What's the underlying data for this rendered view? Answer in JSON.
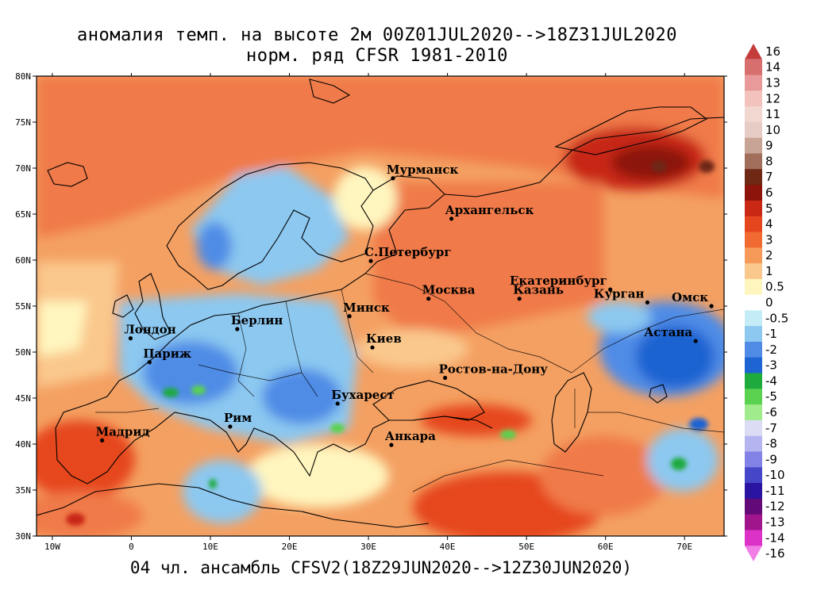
{
  "title_line1": "аномалия темп. на высоте 2м 00Z01JUL2020-->18Z31JUL2020",
  "title_line2": "норм. ряд CFSR 1981-2010",
  "footer": "04 чл. ансамбль CFSV2(18Z29JUN2020-->12Z30JUN2020)",
  "map_extent": {
    "lon": [
      -12,
      75
    ],
    "lat": [
      30,
      80
    ]
  },
  "lon_ticks": [
    {
      "lon": -10,
      "label": "10W"
    },
    {
      "lon": 0,
      "label": "0"
    },
    {
      "lon": 10,
      "label": "10E"
    },
    {
      "lon": 20,
      "label": "20E"
    },
    {
      "lon": 30,
      "label": "30E"
    },
    {
      "lon": 40,
      "label": "40E"
    },
    {
      "lon": 50,
      "label": "50E"
    },
    {
      "lon": 60,
      "label": "60E"
    },
    {
      "lon": 70,
      "label": "70E"
    }
  ],
  "lat_ticks": [
    {
      "lat": 30,
      "label": "30N"
    },
    {
      "lat": 35,
      "label": "35N"
    },
    {
      "lat": 40,
      "label": "40N"
    },
    {
      "lat": 45,
      "label": "45N"
    },
    {
      "lat": 50,
      "label": "50N"
    },
    {
      "lat": 55,
      "label": "55N"
    },
    {
      "lat": 60,
      "label": "60N"
    },
    {
      "lat": 65,
      "label": "65N"
    },
    {
      "lat": 70,
      "label": "70N"
    },
    {
      "lat": 75,
      "label": "75N"
    },
    {
      "lat": 80,
      "label": "80N"
    }
  ],
  "cities": [
    {
      "name": "Мурманск",
      "lon": 33.1,
      "lat": 68.9
    },
    {
      "name": "Архангельск",
      "lon": 40.5,
      "lat": 64.5
    },
    {
      "name": "С.Петербург",
      "lon": 30.3,
      "lat": 59.9
    },
    {
      "name": "Москва",
      "lon": 37.6,
      "lat": 55.8
    },
    {
      "name": "Казань",
      "lon": 49.1,
      "lat": 55.8
    },
    {
      "name": "Екатеринбург",
      "lon": 60.6,
      "lat": 56.8
    },
    {
      "name": "Курган",
      "lon": 65.3,
      "lat": 55.4
    },
    {
      "name": "Омск",
      "lon": 73.4,
      "lat": 55.0
    },
    {
      "name": "Астана",
      "lon": 71.4,
      "lat": 51.2
    },
    {
      "name": "Минск",
      "lon": 27.6,
      "lat": 53.9
    },
    {
      "name": "Берлин",
      "lon": 13.4,
      "lat": 52.5
    },
    {
      "name": "Лондон",
      "lon": -0.1,
      "lat": 51.5
    },
    {
      "name": "Париж",
      "lon": 2.3,
      "lat": 48.9
    },
    {
      "name": "Киев",
      "lon": 30.5,
      "lat": 50.5
    },
    {
      "name": "Ростов-на-Дону",
      "lon": 39.7,
      "lat": 47.2
    },
    {
      "name": "Бухарест",
      "lon": 26.1,
      "lat": 44.4
    },
    {
      "name": "Рим",
      "lon": 12.5,
      "lat": 41.9
    },
    {
      "name": "Мадрид",
      "lon": -3.7,
      "lat": 40.4
    },
    {
      "name": "Анкара",
      "lon": 32.9,
      "lat": 39.9
    }
  ],
  "legend": {
    "labels": [
      "16",
      "14",
      "13",
      "12",
      "11",
      "10",
      "9",
      "8",
      "7",
      "6",
      "5",
      "4",
      "3",
      "2",
      "1",
      "0.5",
      "0",
      "-0.5",
      "-1",
      "-2",
      "-3",
      "-4",
      "-5",
      "-6",
      "-7",
      "-8",
      "-9",
      "-10",
      "-11",
      "-12",
      "-13",
      "-14",
      "-16"
    ],
    "colors": [
      "#c43c3c",
      "#d86f6f",
      "#e89a9a",
      "#f4c2bc",
      "#f2d6d0",
      "#e6ccc4",
      "#c8a496",
      "#a06e5a",
      "#6e2814",
      "#8c140a",
      "#c82814",
      "#e6461e",
      "#f06a32",
      "#f59a58",
      "#fac88c",
      "#fff5be",
      "#ffffff",
      "#c4ecf7",
      "#8cc8f0",
      "#508ce6",
      "#1e64d2",
      "#1eaa3c",
      "#5ad250",
      "#a0eb8c",
      "#dcdcf5",
      "#b4b4f0",
      "#8282e6",
      "#4646c8",
      "#2814a0",
      "#640a78",
      "#a0148c",
      "#dc32c8",
      "#f07ee6"
    ],
    "below": {
      "label": "-16",
      "color": "#f07ee6"
    },
    "above": {
      "label": "16",
      "color": "#c43c3c"
    }
  },
  "colors": {
    "ocean_warm": "#f07a4a",
    "warm": "#f4a062",
    "cold": "#508ce6",
    "hot": "#e6461e"
  }
}
